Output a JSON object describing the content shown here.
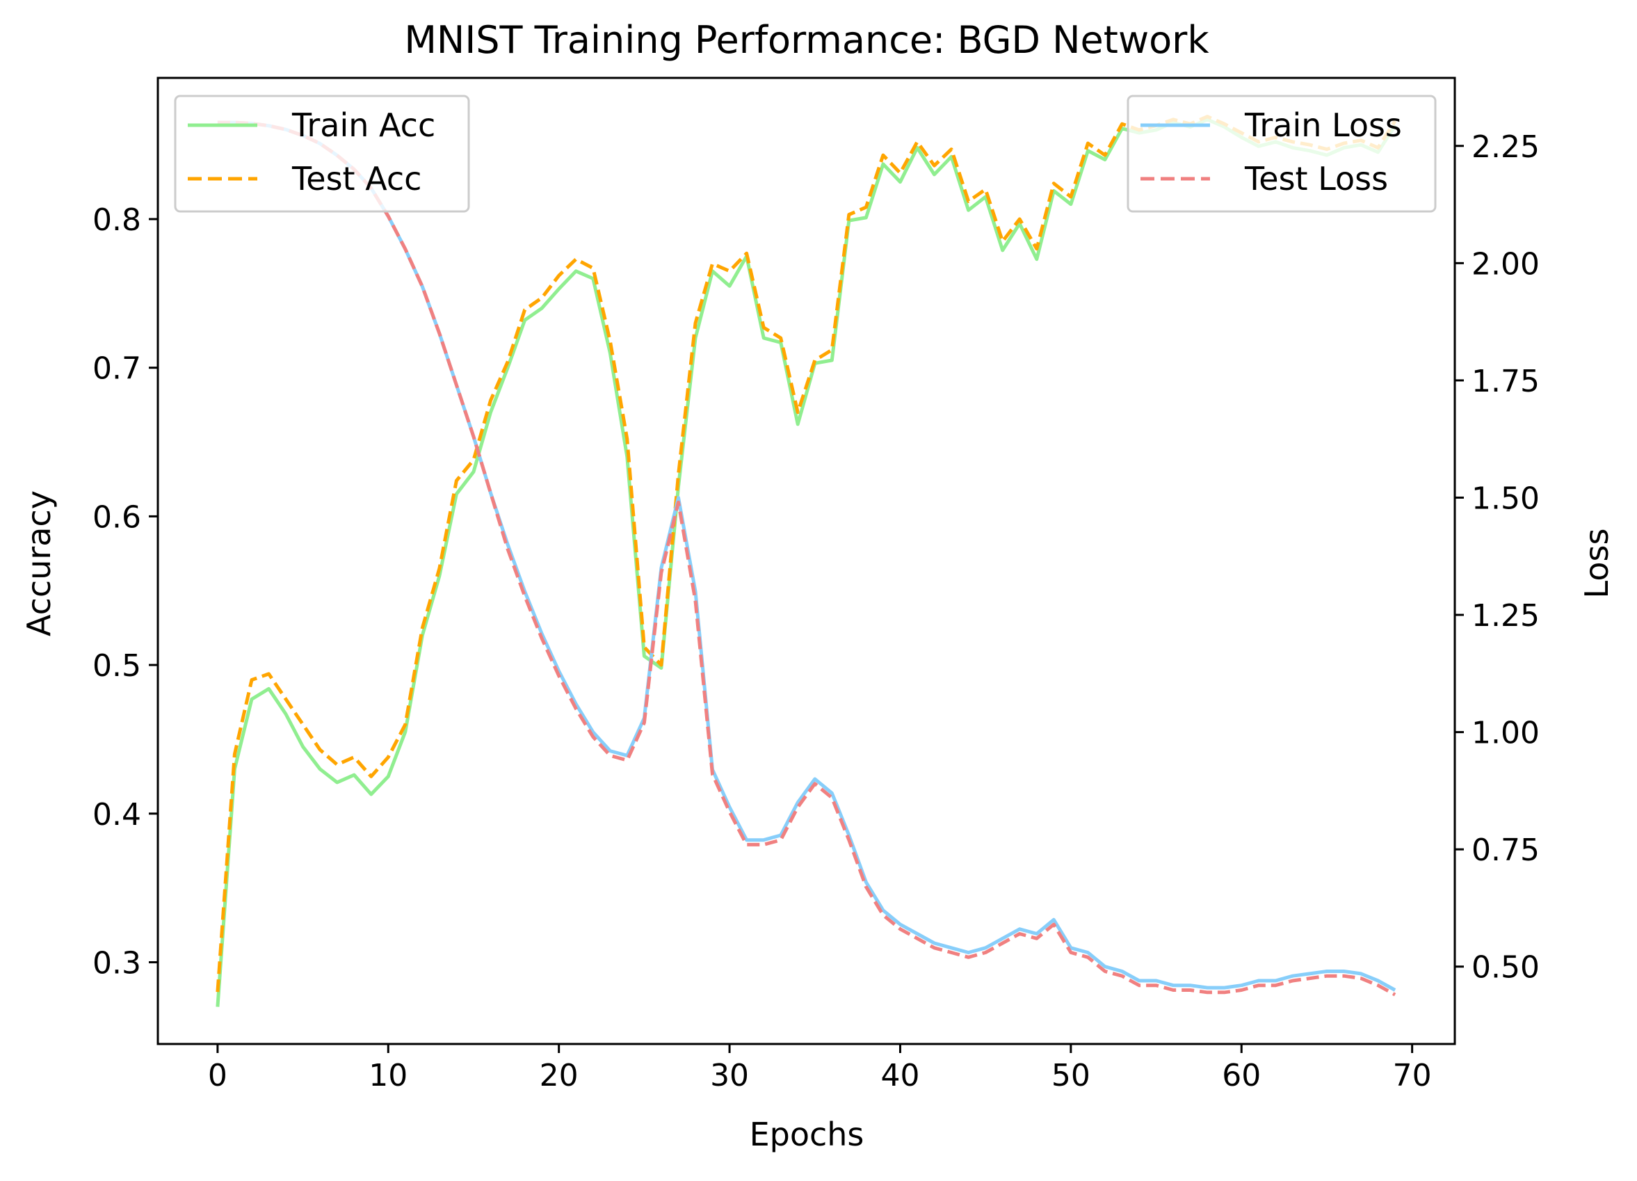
{
  "chart_data": {
    "type": "line",
    "title": "MNIST Training Performance: BGD Network",
    "xlabel": "Epochs",
    "ylabel_left": "Accuracy",
    "ylabel_right": "Loss",
    "xlim": [
      -3.5,
      72.5
    ],
    "ylim_left": [
      0.245,
      0.895
    ],
    "ylim_right": [
      0.335,
      2.395
    ],
    "x_ticks": [
      0,
      10,
      20,
      30,
      40,
      50,
      60,
      70
    ],
    "y_left_ticks": [
      0.3,
      0.4,
      0.5,
      0.6,
      0.7,
      0.8
    ],
    "y_right_ticks": [
      0.5,
      0.75,
      1.0,
      1.25,
      1.5,
      1.75,
      2.0,
      2.25
    ],
    "x_tick_labels": [
      "0",
      "10",
      "20",
      "30",
      "40",
      "50",
      "60",
      "70"
    ],
    "y_left_tick_labels": [
      "0.3",
      "0.4",
      "0.5",
      "0.6",
      "0.7",
      "0.8"
    ],
    "y_right_tick_labels": [
      "0.50",
      "0.75",
      "1.00",
      "1.25",
      "1.50",
      "1.75",
      "2.00",
      "2.25"
    ],
    "grid": false,
    "legend_left": {
      "placement": "top-left",
      "entries": [
        "Train Acc",
        "Test Acc"
      ]
    },
    "legend_right": {
      "placement": "top-right",
      "entries": [
        "Train Loss",
        "Test Loss"
      ]
    },
    "series": [
      {
        "name": "Train Acc",
        "axis": "left",
        "color": "#90EE90",
        "style": "solid",
        "values": [
          0.27,
          0.43,
          0.477,
          0.484,
          0.467,
          0.445,
          0.43,
          0.421,
          0.426,
          0.413,
          0.425,
          0.455,
          0.52,
          0.56,
          0.615,
          0.63,
          0.67,
          0.7,
          0.732,
          0.74,
          0.753,
          0.765,
          0.76,
          0.71,
          0.64,
          0.506,
          0.498,
          0.62,
          0.72,
          0.765,
          0.755,
          0.775,
          0.72,
          0.717,
          0.662,
          0.703,
          0.705,
          0.799,
          0.801,
          0.837,
          0.825,
          0.848,
          0.83,
          0.842,
          0.806,
          0.815,
          0.779,
          0.797,
          0.773,
          0.819,
          0.81,
          0.846,
          0.84,
          0.861,
          0.858,
          0.86,
          0.865,
          0.862,
          0.867,
          0.862,
          0.855,
          0.849,
          0.852,
          0.848,
          0.846,
          0.843,
          0.848,
          0.85,
          0.845,
          0.863
        ]
      },
      {
        "name": "Test Acc",
        "axis": "left",
        "color": "#FFA500",
        "style": "dashed",
        "values": [
          0.28,
          0.44,
          0.49,
          0.494,
          0.477,
          0.46,
          0.443,
          0.433,
          0.438,
          0.425,
          0.438,
          0.46,
          0.525,
          0.565,
          0.624,
          0.638,
          0.678,
          0.704,
          0.739,
          0.747,
          0.762,
          0.773,
          0.767,
          0.718,
          0.652,
          0.512,
          0.5,
          0.628,
          0.73,
          0.77,
          0.765,
          0.777,
          0.727,
          0.72,
          0.67,
          0.705,
          0.712,
          0.803,
          0.808,
          0.843,
          0.831,
          0.852,
          0.836,
          0.847,
          0.812,
          0.82,
          0.785,
          0.8,
          0.78,
          0.824,
          0.815,
          0.851,
          0.843,
          0.864,
          0.86,
          0.863,
          0.867,
          0.864,
          0.869,
          0.864,
          0.858,
          0.852,
          0.855,
          0.852,
          0.85,
          0.847,
          0.851,
          0.853,
          0.848,
          0.866
        ]
      },
      {
        "name": "Train Loss",
        "axis": "right",
        "color": "#87CEFA",
        "style": "solid",
        "values": [
          2.3,
          2.3,
          2.298,
          2.293,
          2.285,
          2.272,
          2.255,
          2.23,
          2.2,
          2.16,
          2.1,
          2.03,
          1.95,
          1.85,
          1.74,
          1.63,
          1.51,
          1.4,
          1.3,
          1.21,
          1.13,
          1.06,
          1.0,
          0.96,
          0.95,
          1.03,
          1.35,
          1.5,
          1.3,
          0.92,
          0.84,
          0.77,
          0.77,
          0.78,
          0.85,
          0.9,
          0.87,
          0.78,
          0.68,
          0.62,
          0.59,
          0.57,
          0.55,
          0.54,
          0.53,
          0.54,
          0.56,
          0.58,
          0.57,
          0.6,
          0.54,
          0.53,
          0.5,
          0.49,
          0.47,
          0.47,
          0.46,
          0.46,
          0.455,
          0.455,
          0.46,
          0.47,
          0.47,
          0.48,
          0.485,
          0.49,
          0.49,
          0.485,
          0.47,
          0.45
        ]
      },
      {
        "name": "Test Loss",
        "axis": "right",
        "color": "#F08080",
        "style": "dashed",
        "values": [
          2.3,
          2.3,
          2.298,
          2.293,
          2.285,
          2.272,
          2.255,
          2.23,
          2.2,
          2.16,
          2.1,
          2.03,
          1.95,
          1.85,
          1.74,
          1.63,
          1.51,
          1.39,
          1.29,
          1.2,
          1.12,
          1.05,
          0.99,
          0.95,
          0.94,
          1.02,
          1.34,
          1.49,
          1.28,
          0.91,
          0.83,
          0.76,
          0.76,
          0.77,
          0.84,
          0.89,
          0.86,
          0.77,
          0.67,
          0.61,
          0.58,
          0.56,
          0.54,
          0.53,
          0.52,
          0.53,
          0.55,
          0.57,
          0.56,
          0.59,
          0.53,
          0.52,
          0.49,
          0.48,
          0.46,
          0.46,
          0.45,
          0.45,
          0.445,
          0.445,
          0.45,
          0.46,
          0.46,
          0.47,
          0.475,
          0.48,
          0.48,
          0.475,
          0.46,
          0.44
        ]
      }
    ]
  }
}
